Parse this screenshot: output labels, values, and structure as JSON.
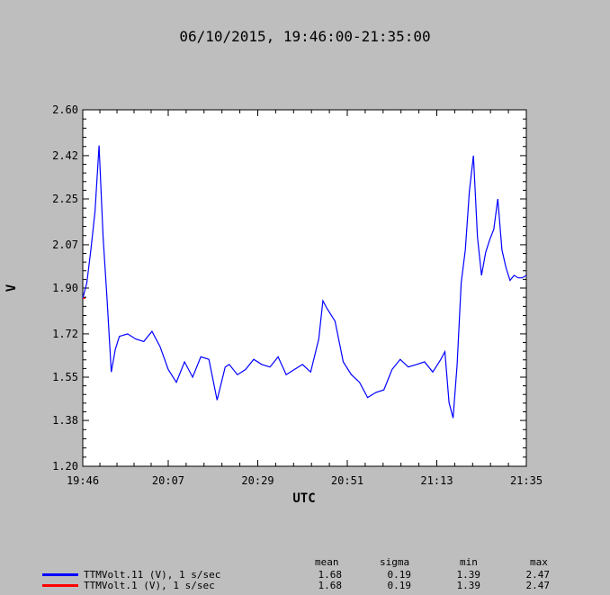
{
  "chart_data": {
    "type": "line",
    "title": "06/10/2015, 19:46:00-21:35:00",
    "xlabel": "UTC",
    "ylabel": "V",
    "x_range": [
      "19:46",
      "21:35"
    ],
    "ylim": [
      1.2,
      2.6
    ],
    "y_ticks": [
      "1.20",
      "1.38",
      "1.55",
      "1.72",
      "1.90",
      "2.07",
      "2.25",
      "2.42",
      "2.60"
    ],
    "x_ticks": [
      "19:46",
      "20:07",
      "20:29",
      "20:51",
      "21:13",
      "21:35"
    ],
    "grid": false,
    "series": [
      {
        "name": "TTMVolt.11 (V), 1 s/sec",
        "color": "#0000ff",
        "x": [
          "19:46",
          "19:47",
          "19:48",
          "19:49",
          "19:50",
          "19:51",
          "19:52",
          "19:53",
          "19:54",
          "19:55",
          "19:57",
          "19:59",
          "20:01",
          "20:03",
          "20:05",
          "20:07",
          "20:09",
          "20:11",
          "20:13",
          "20:15",
          "20:17",
          "20:19",
          "20:21",
          "20:22",
          "20:24",
          "20:26",
          "20:28",
          "20:30",
          "20:32",
          "20:34",
          "20:36",
          "20:38",
          "20:40",
          "20:42",
          "20:44",
          "20:45",
          "20:46",
          "20:48",
          "20:50",
          "20:52",
          "20:54",
          "20:56",
          "20:58",
          "21:00",
          "21:02",
          "21:04",
          "21:06",
          "21:08",
          "21:10",
          "21:12",
          "21:14",
          "21:15",
          "21:16",
          "21:17",
          "21:18",
          "21:19",
          "21:20",
          "21:21",
          "21:22",
          "21:23",
          "21:24",
          "21:25",
          "21:26",
          "21:27",
          "21:28",
          "21:29",
          "21:30",
          "21:31",
          "21:32",
          "21:33",
          "21:34",
          "21:35"
        ],
        "values": [
          1.86,
          1.92,
          2.05,
          2.2,
          2.46,
          2.1,
          1.85,
          1.57,
          1.66,
          1.71,
          1.72,
          1.7,
          1.69,
          1.73,
          1.67,
          1.58,
          1.53,
          1.61,
          1.55,
          1.63,
          1.62,
          1.46,
          1.59,
          1.6,
          1.56,
          1.58,
          1.62,
          1.6,
          1.59,
          1.63,
          1.56,
          1.58,
          1.6,
          1.57,
          1.7,
          1.85,
          1.82,
          1.77,
          1.61,
          1.56,
          1.53,
          1.47,
          1.49,
          1.5,
          1.58,
          1.62,
          1.59,
          1.6,
          1.61,
          1.57,
          1.62,
          1.65,
          1.45,
          1.39,
          1.6,
          1.92,
          2.05,
          2.28,
          2.42,
          2.1,
          1.95,
          2.04,
          2.09,
          2.13,
          2.25,
          2.05,
          1.98,
          1.93,
          1.95,
          1.94,
          1.94,
          1.95
        ]
      },
      {
        "name": "TTMVolt.1 (V), 1 s/sec",
        "color": "#ff0000",
        "x": [
          "19:46",
          "19:46"
        ],
        "values": [
          1.86,
          1.86
        ]
      }
    ],
    "legend": {
      "placement": "bottom",
      "columns": [
        "mean",
        "sigma",
        "min",
        "max"
      ],
      "rows": [
        {
          "mean": "1.68",
          "sigma": "0.19",
          "min": "1.39",
          "max": "2.47"
        },
        {
          "mean": "1.68",
          "sigma": "0.19",
          "min": "1.39",
          "max": "2.47"
        }
      ]
    }
  }
}
